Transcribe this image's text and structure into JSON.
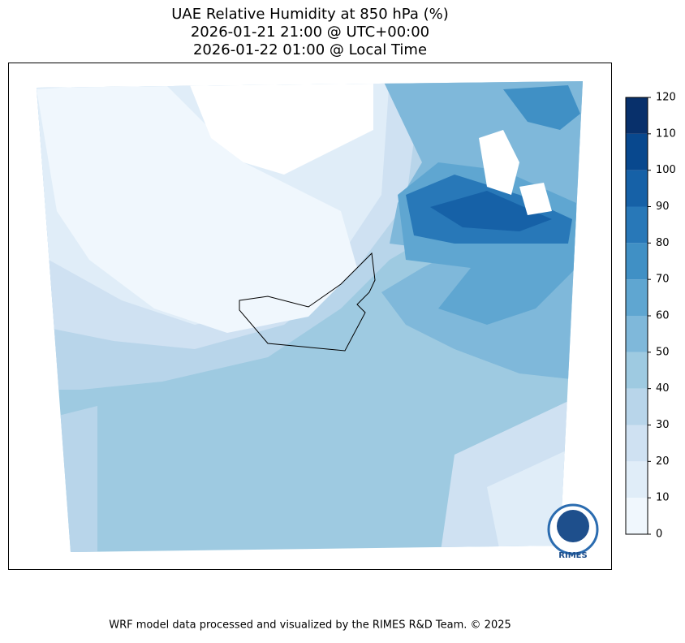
{
  "title": [
    "UAE Relative Humidity at 850 hPa (%)",
    "2026-01-21 21:00 @ UTC+00:00",
    "2026-01-22 01:00 @ Local Time"
  ],
  "colorbar": {
    "ticks": [
      0,
      10,
      20,
      30,
      40,
      50,
      60,
      70,
      80,
      90,
      100,
      110,
      120
    ],
    "colors": [
      "#f0f7fd",
      "#e0edf8",
      "#cfe1f2",
      "#b8d5ea",
      "#9ecae1",
      "#7fb8da",
      "#5fa6d1",
      "#4090c5",
      "#2878b8",
      "#1661a7",
      "#08488e",
      "#08306b"
    ]
  },
  "logo": "RIMES",
  "footer": "WRF model data processed and visualized by the RIMES R&D Team. © 2025"
}
